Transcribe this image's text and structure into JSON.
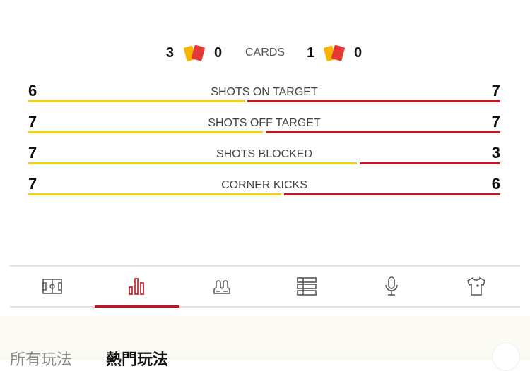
{
  "cards": {
    "label": "CARDS",
    "home": {
      "yellow": "3",
      "red": "0"
    },
    "away": {
      "yellow": "1",
      "red": "0"
    }
  },
  "colors": {
    "home": "#f5cc1f",
    "away": "#c4161c",
    "yellow_card": "#f7b500",
    "red_card": "#e53935"
  },
  "stats": [
    {
      "label": "SHOTS ON TARGET",
      "home": "6",
      "away": "7"
    },
    {
      "label": "SHOTS OFF TARGET",
      "home": "7",
      "away": "7"
    },
    {
      "label": "SHOTS BLOCKED",
      "home": "7",
      "away": "3"
    },
    {
      "label": "CORNER KICKS",
      "home": "7",
      "away": "6"
    }
  ],
  "tabs": [
    {
      "icon": "pitch-icon"
    },
    {
      "icon": "bar-chart-icon",
      "active": true
    },
    {
      "icon": "players-icon"
    },
    {
      "icon": "list-icon"
    },
    {
      "icon": "microphone-icon"
    },
    {
      "icon": "jersey-icon"
    }
  ],
  "bottom": {
    "tab_all": "所有玩法",
    "tab_hot": "熱門玩法"
  }
}
